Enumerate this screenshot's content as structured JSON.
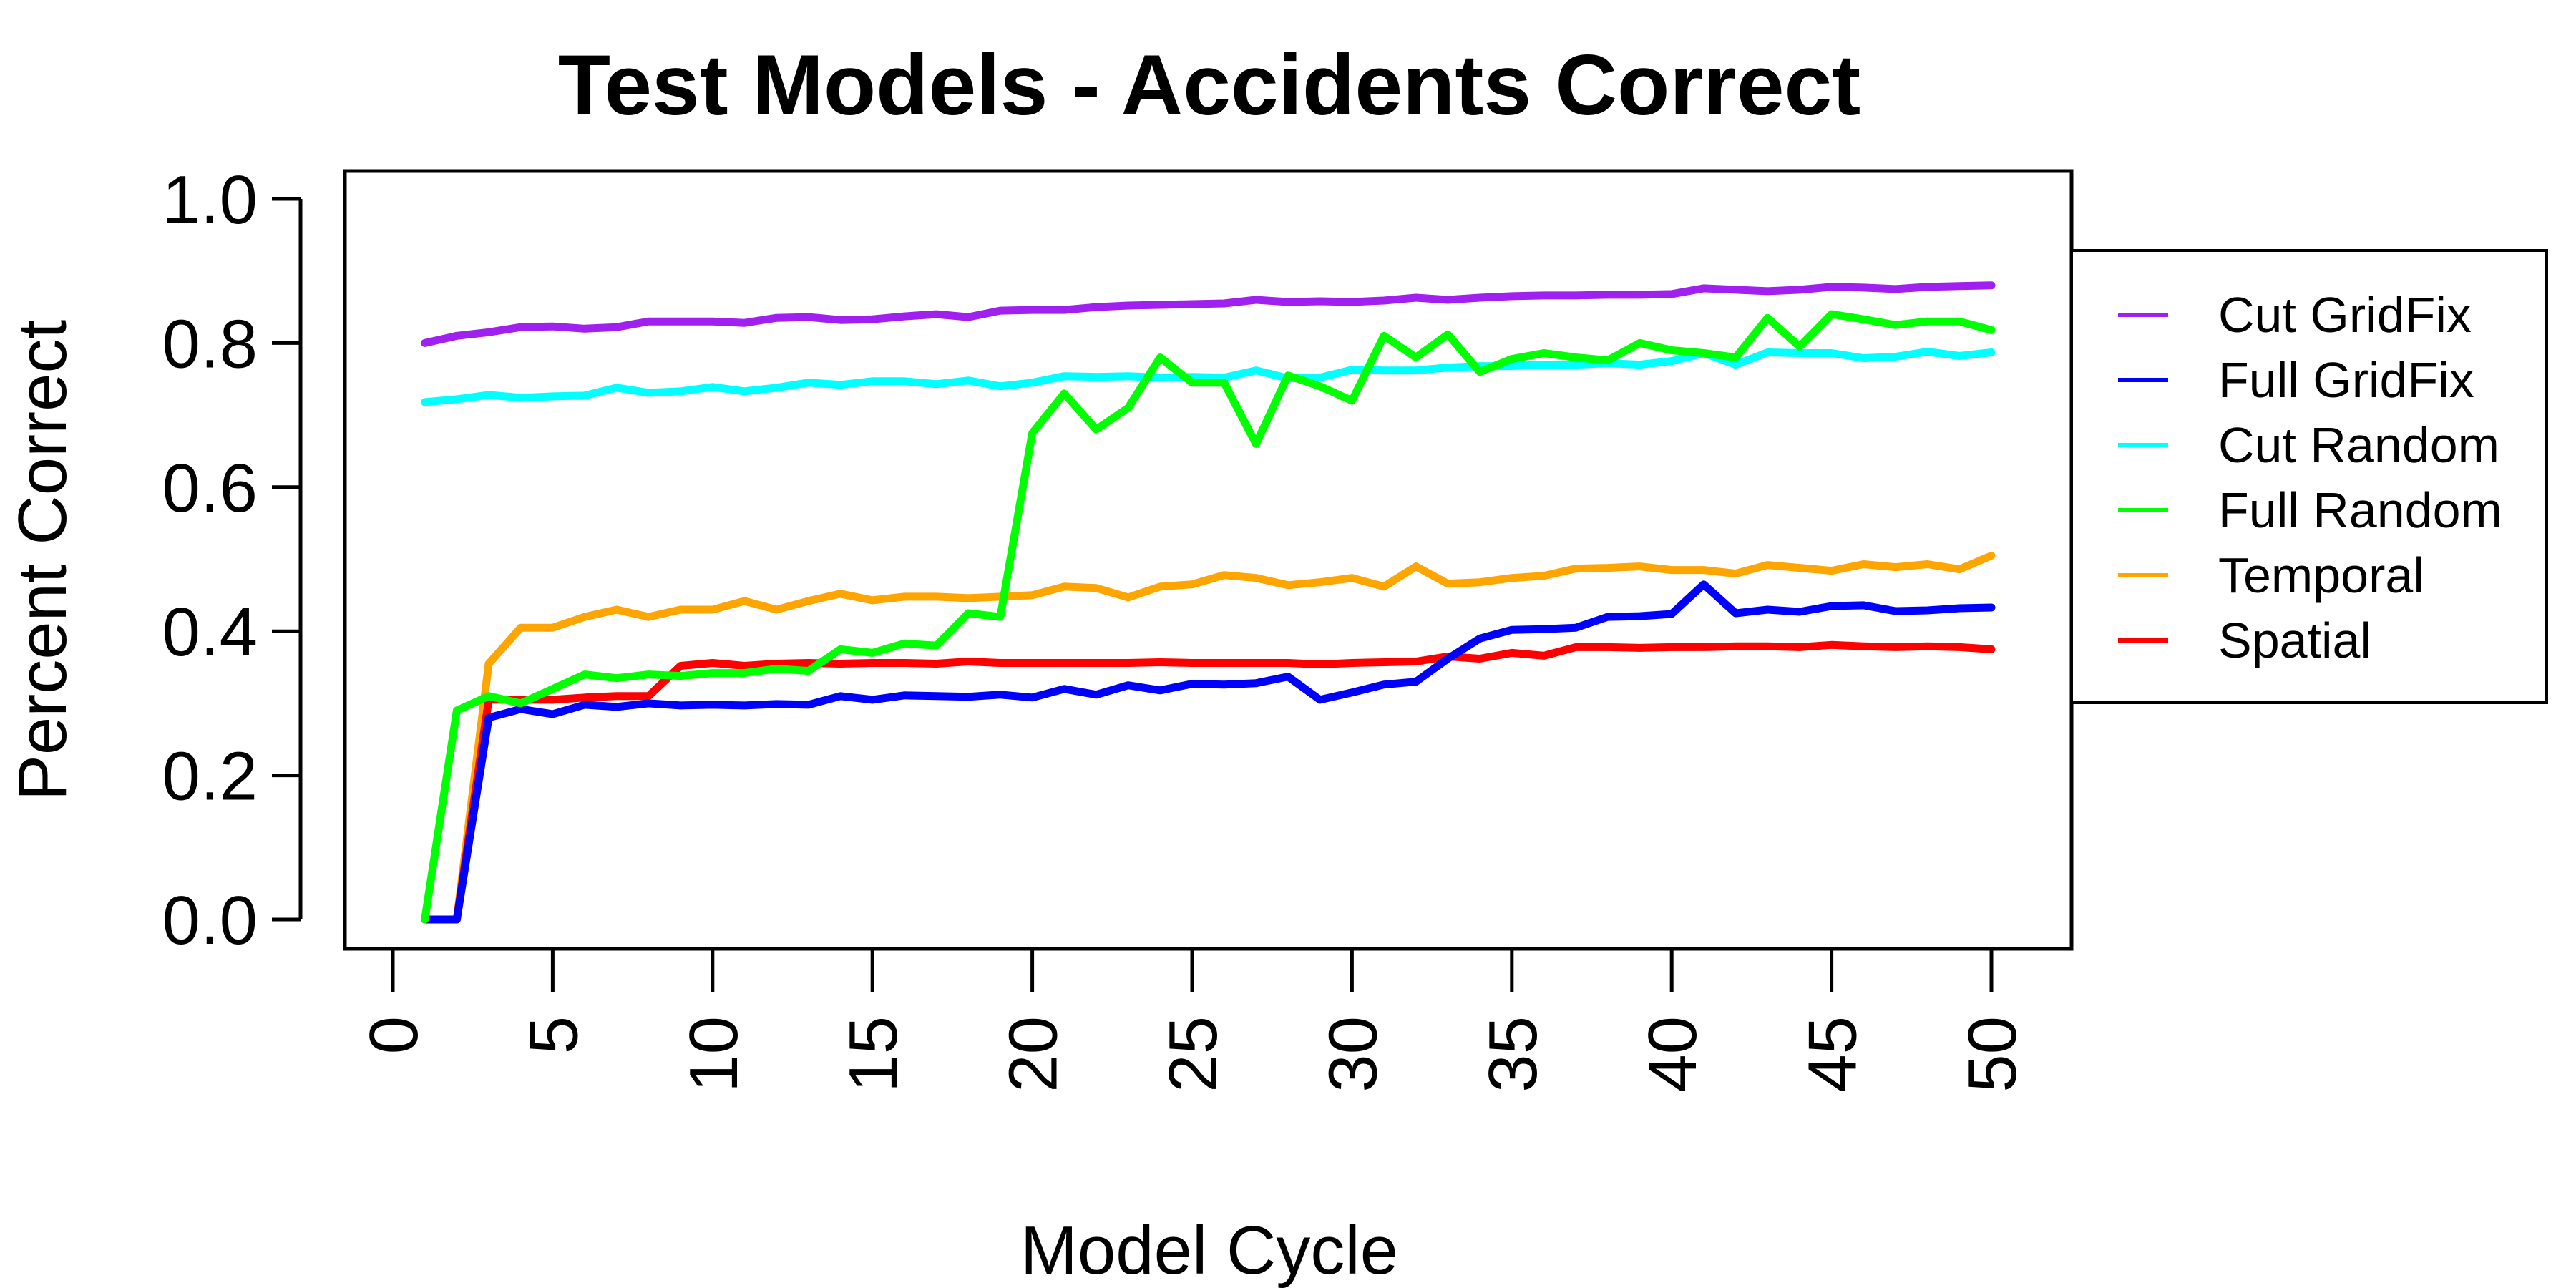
{
  "chart_data": {
    "type": "line",
    "title": "Test Models - Accidents Correct",
    "xlabel": "Model Cycle",
    "ylabel": "Percent Correct",
    "xlim": [
      0,
      50
    ],
    "ylim": [
      0,
      1.0
    ],
    "xticks": [
      0,
      5,
      10,
      15,
      20,
      25,
      30,
      35,
      40,
      45,
      50
    ],
    "yticks": [
      0.0,
      0.2,
      0.4,
      0.6,
      0.8,
      1.0
    ],
    "xtick_labels": [
      "0",
      "5",
      "10",
      "15",
      "20",
      "25",
      "30",
      "35",
      "40",
      "45",
      "50"
    ],
    "ytick_labels": [
      "0.0",
      "0.2",
      "0.4",
      "0.6",
      "0.8",
      "1.0"
    ],
    "grid": false,
    "legend_position": "right",
    "x": [
      1,
      2,
      3,
      4,
      5,
      6,
      7,
      8,
      9,
      10,
      11,
      12,
      13,
      14,
      15,
      16,
      17,
      18,
      19,
      20,
      21,
      22,
      23,
      24,
      25,
      26,
      27,
      28,
      29,
      30,
      31,
      32,
      33,
      34,
      35,
      36,
      37,
      38,
      39,
      40,
      41,
      42,
      43,
      44,
      45,
      46,
      47,
      48,
      49,
      50
    ],
    "series": [
      {
        "name": "Cut GridFix",
        "color": "#a020f0",
        "values": [
          0.8,
          0.81,
          0.815,
          0.822,
          0.823,
          0.82,
          0.822,
          0.83,
          0.83,
          0.83,
          0.828,
          0.835,
          0.836,
          0.832,
          0.833,
          0.837,
          0.84,
          0.836,
          0.845,
          0.846,
          0.846,
          0.85,
          0.852,
          0.853,
          0.854,
          0.855,
          0.86,
          0.857,
          0.858,
          0.857,
          0.859,
          0.863,
          0.86,
          0.863,
          0.865,
          0.866,
          0.866,
          0.867,
          0.867,
          0.868,
          0.876,
          0.874,
          0.872,
          0.874,
          0.878,
          0.877,
          0.875,
          0.878,
          0.879,
          0.88
        ]
      },
      {
        "name": "Full GridFix",
        "color": "#0000ff",
        "values": [
          0.0,
          0.0,
          0.28,
          0.292,
          0.285,
          0.298,
          0.295,
          0.3,
          0.297,
          0.298,
          0.297,
          0.299,
          0.298,
          0.31,
          0.305,
          0.311,
          0.31,
          0.309,
          0.312,
          0.308,
          0.32,
          0.312,
          0.325,
          0.318,
          0.327,
          0.326,
          0.328,
          0.337,
          0.305,
          0.315,
          0.326,
          0.33,
          0.362,
          0.39,
          0.402,
          0.403,
          0.405,
          0.42,
          0.421,
          0.424,
          0.465,
          0.425,
          0.43,
          0.427,
          0.435,
          0.436,
          0.428,
          0.429,
          0.432,
          0.433
        ]
      },
      {
        "name": "Cut Random",
        "color": "#00ffff",
        "values": [
          0.718,
          0.722,
          0.728,
          0.724,
          0.726,
          0.727,
          0.738,
          0.731,
          0.733,
          0.739,
          0.733,
          0.738,
          0.745,
          0.742,
          0.747,
          0.747,
          0.743,
          0.748,
          0.74,
          0.745,
          0.754,
          0.753,
          0.754,
          0.752,
          0.753,
          0.752,
          0.762,
          0.751,
          0.752,
          0.763,
          0.762,
          0.762,
          0.766,
          0.768,
          0.768,
          0.77,
          0.77,
          0.772,
          0.77,
          0.775,
          0.786,
          0.77,
          0.787,
          0.786,
          0.786,
          0.779,
          0.781,
          0.788,
          0.782,
          0.787
        ]
      },
      {
        "name": "Full Random",
        "color": "#00ff00",
        "values": [
          0.0,
          0.29,
          0.31,
          0.3,
          0.32,
          0.34,
          0.335,
          0.34,
          0.338,
          0.342,
          0.342,
          0.348,
          0.345,
          0.375,
          0.37,
          0.383,
          0.38,
          0.425,
          0.42,
          0.675,
          0.73,
          0.68,
          0.71,
          0.78,
          0.745,
          0.745,
          0.66,
          0.755,
          0.74,
          0.72,
          0.81,
          0.78,
          0.812,
          0.76,
          0.778,
          0.786,
          0.78,
          0.776,
          0.8,
          0.79,
          0.786,
          0.78,
          0.835,
          0.795,
          0.84,
          0.833,
          0.825,
          0.83,
          0.83,
          0.818
        ]
      },
      {
        "name": "Temporal",
        "color": "#ffa500",
        "values": [
          0.0,
          0.0,
          0.355,
          0.405,
          0.405,
          0.42,
          0.43,
          0.42,
          0.43,
          0.43,
          0.442,
          0.43,
          0.442,
          0.452,
          0.443,
          0.448,
          0.448,
          0.446,
          0.448,
          0.45,
          0.462,
          0.46,
          0.447,
          0.462,
          0.465,
          0.478,
          0.474,
          0.464,
          0.468,
          0.474,
          0.462,
          0.49,
          0.466,
          0.468,
          0.474,
          0.477,
          0.487,
          0.488,
          0.49,
          0.485,
          0.485,
          0.48,
          0.492,
          0.488,
          0.484,
          0.493,
          0.489,
          0.493,
          0.486,
          0.505
        ]
      },
      {
        "name": "Spatial",
        "color": "#ff0000",
        "values": [
          0.0,
          0.0,
          0.305,
          0.305,
          0.305,
          0.308,
          0.31,
          0.31,
          0.352,
          0.356,
          0.352,
          0.355,
          0.356,
          0.355,
          0.356,
          0.356,
          0.355,
          0.358,
          0.356,
          0.356,
          0.356,
          0.356,
          0.356,
          0.357,
          0.356,
          0.356,
          0.356,
          0.356,
          0.354,
          0.356,
          0.357,
          0.358,
          0.365,
          0.362,
          0.37,
          0.366,
          0.378,
          0.378,
          0.377,
          0.378,
          0.378,
          0.379,
          0.379,
          0.378,
          0.381,
          0.379,
          0.378,
          0.379,
          0.378,
          0.375
        ]
      }
    ]
  }
}
